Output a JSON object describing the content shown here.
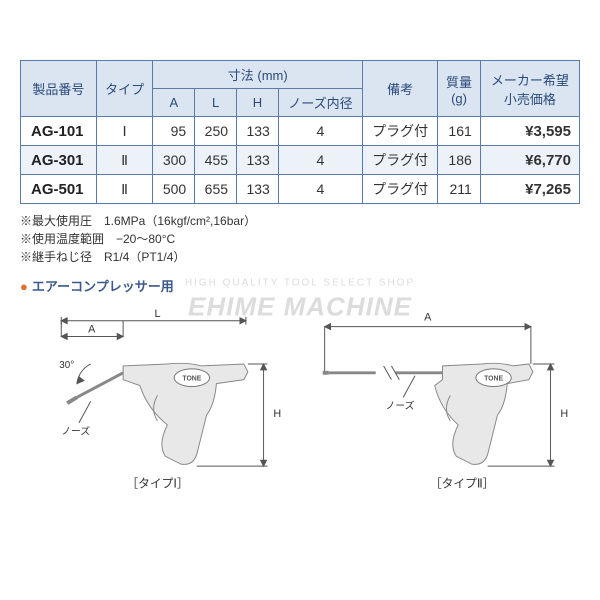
{
  "watermark": {
    "sub": "HIGH QUALITY TOOL SELECT SHOP",
    "main": "EHIME MACHINE"
  },
  "table": {
    "headers": {
      "model": "製品番号",
      "type": "タイプ",
      "dim": "寸法 (mm)",
      "dim_a": "A",
      "dim_l": "L",
      "dim_h": "H",
      "nose_id": "ノーズ内径",
      "remarks": "備考",
      "mass": "質量\n(g)",
      "price": "メーカー希望\n小売価格"
    },
    "rows": [
      {
        "model": "AG-101",
        "type": "Ⅰ",
        "a": "95",
        "l": "250",
        "h": "133",
        "nose": "4",
        "remarks": "プラグ付",
        "mass": "161",
        "price": "¥3,595",
        "shade": false
      },
      {
        "model": "AG-301",
        "type": "Ⅱ",
        "a": "300",
        "l": "455",
        "h": "133",
        "nose": "4",
        "remarks": "プラグ付",
        "mass": "186",
        "price": "¥6,770",
        "shade": true
      },
      {
        "model": "AG-501",
        "type": "Ⅱ",
        "a": "500",
        "l": "655",
        "h": "133",
        "nose": "4",
        "remarks": "プラグ付",
        "mass": "211",
        "price": "¥7,265",
        "shade": false
      }
    ]
  },
  "notes": {
    "n1": "※最大使用圧　1.6MPa（16kgf/cm²,16bar）",
    "n2": "※使用温度範囲　−20～80°C",
    "n3": "※継手ねじ径　R1/4（PT1/4）"
  },
  "section": "エアーコンプレッサー用",
  "diagram": {
    "type1_label": "［タイプⅠ］",
    "type2_label": "［タイプⅡ］",
    "a": "A",
    "l": "L",
    "h": "H",
    "angle": "30°",
    "nose": "ノーズ",
    "brand": "TONE"
  }
}
